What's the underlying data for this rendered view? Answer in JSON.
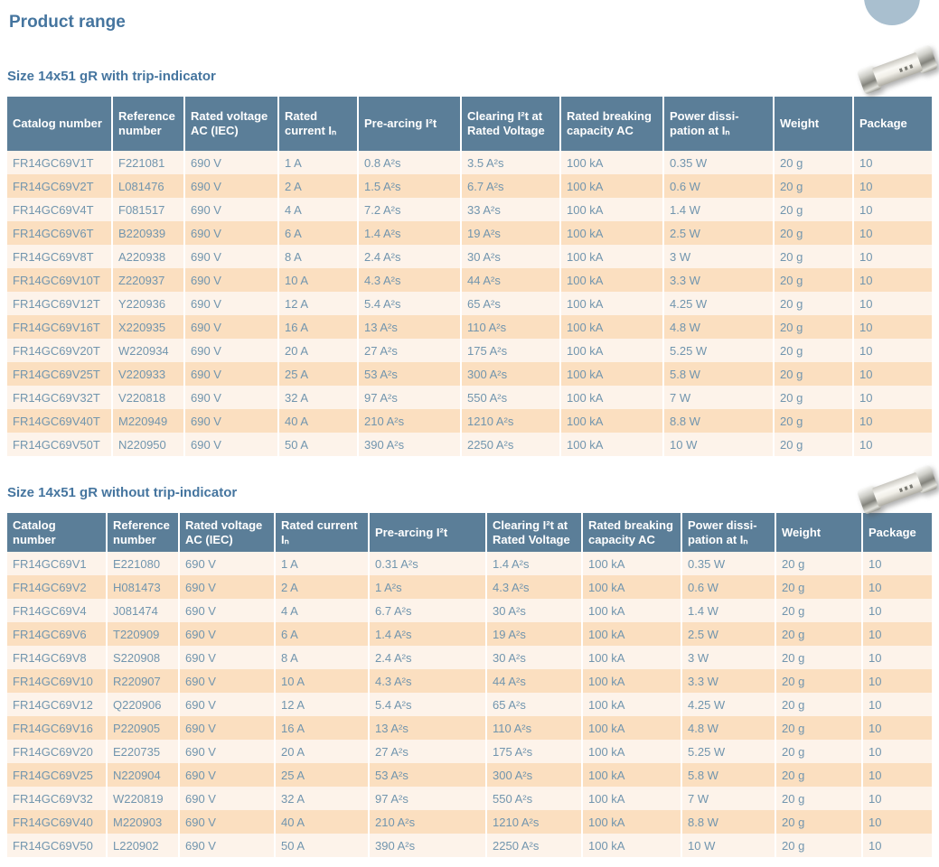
{
  "page": {
    "title": "Product range"
  },
  "decorations": {
    "circle_icon": "decorative-circle",
    "circle_color": "#a9bfcf",
    "fuse_icon": "cartridge-fuse-photo"
  },
  "colors": {
    "heading_text": "#45759f",
    "table_header_bg": "#5b7e98",
    "table_header_text": "#ffffff",
    "row_light_bg": "#fdf3ea",
    "row_peach_bg": "#fbdfc0",
    "cell_text": "#7195ae"
  },
  "sections": [
    {
      "heading": "Size 14x51 gR with trip-indicator",
      "columns": [
        "Catalog number",
        "Reference number",
        "Rated voltage AC (IEC)",
        "Rated current Iₙ",
        "Pre-arcing I²t",
        "Clearing I²t at Rated Voltage",
        "Rated breaking capacity AC",
        "Power dissi-pation at Iₙ",
        "Weight",
        "Package"
      ],
      "rows": [
        [
          "FR14GC69V1T",
          "F221081",
          "690 V",
          "1 A",
          "0.8 A²s",
          "3.5 A²s",
          "100 kA",
          "0.35 W",
          "20 g",
          "10"
        ],
        [
          "FR14GC69V2T",
          "L081476",
          "690 V",
          "2 A",
          "1.5 A²s",
          "6.7 A²s",
          "100 kA",
          "0.6 W",
          "20 g",
          "10"
        ],
        [
          "FR14GC69V4T",
          "F081517",
          "690 V",
          "4 A",
          "7.2 A²s",
          "33 A²s",
          "100 kA",
          "1.4 W",
          "20 g",
          "10"
        ],
        [
          "FR14GC69V6T",
          "B220939",
          "690 V",
          "6 A",
          "1.4 A²s",
          "19 A²s",
          "100 kA",
          "2.5 W",
          "20 g",
          "10"
        ],
        [
          "FR14GC69V8T",
          "A220938",
          "690 V",
          "8 A",
          "2.4 A²s",
          "30 A²s",
          "100 kA",
          "3 W",
          "20 g",
          "10"
        ],
        [
          "FR14GC69V10T",
          "Z220937",
          "690 V",
          "10 A",
          "4.3 A²s",
          "44 A²s",
          "100 kA",
          "3.3 W",
          "20 g",
          "10"
        ],
        [
          "FR14GC69V12T",
          "Y220936",
          "690 V",
          "12 A",
          "5.4 A²s",
          "65 A²s",
          "100 kA",
          "4.25 W",
          "20 g",
          "10"
        ],
        [
          "FR14GC69V16T",
          "X220935",
          "690 V",
          "16 A",
          "13 A²s",
          "110 A²s",
          "100 kA",
          "4.8 W",
          "20 g",
          "10"
        ],
        [
          "FR14GC69V20T",
          "W220934",
          "690 V",
          "20 A",
          "27 A²s",
          "175 A²s",
          "100 kA",
          "5.25 W",
          "20 g",
          "10"
        ],
        [
          "FR14GC69V25T",
          "V220933",
          "690 V",
          "25 A",
          "53 A²s",
          "300 A²s",
          "100 kA",
          "5.8 W",
          "20 g",
          "10"
        ],
        [
          "FR14GC69V32T",
          "V220818",
          "690 V",
          "32 A",
          "97 A²s",
          "550 A²s",
          "100 kA",
          "7 W",
          "20 g",
          "10"
        ],
        [
          "FR14GC69V40T",
          "M220949",
          "690 V",
          "40 A",
          "210 A²s",
          "1210 A²s",
          "100 kA",
          "8.8 W",
          "20 g",
          "10"
        ],
        [
          "FR14GC69V50T",
          "N220950",
          "690 V",
          "50 A",
          "390 A²s",
          "2250 A²s",
          "100 kA",
          "10 W",
          "20 g",
          "10"
        ]
      ]
    },
    {
      "heading": "Size 14x51 gR without trip-indicator",
      "columns": [
        "Catalog number",
        "Reference number",
        "Rated voltage AC (IEC)",
        "Rated current Iₙ",
        "Pre-arcing I²t",
        "Clearing I²t at Rated Voltage",
        "Rated breaking capacity AC",
        "Power dissi-pation at Iₙ",
        "Weight",
        "Package"
      ],
      "rows": [
        [
          "FR14GC69V1",
          "E221080",
          "690 V",
          "1 A",
          "0.31 A²s",
          "1.4 A²s",
          "100 kA",
          "0.35 W",
          "20 g",
          "10"
        ],
        [
          "FR14GC69V2",
          "H081473",
          "690 V",
          "2 A",
          "1 A²s",
          "4.3 A²s",
          "100 kA",
          "0.6 W",
          "20 g",
          "10"
        ],
        [
          "FR14GC69V4",
          "J081474",
          "690 V",
          "4 A",
          "6.7 A²s",
          "30 A²s",
          "100 kA",
          "1.4 W",
          "20 g",
          "10"
        ],
        [
          "FR14GC69V6",
          "T220909",
          "690 V",
          "6 A",
          "1.4 A²s",
          "19 A²s",
          "100 kA",
          "2.5 W",
          "20 g",
          "10"
        ],
        [
          "FR14GC69V8",
          "S220908",
          "690 V",
          "8 A",
          "2.4 A²s",
          "30 A²s",
          "100 kA",
          "3 W",
          "20 g",
          "10"
        ],
        [
          "FR14GC69V10",
          "R220907",
          "690 V",
          "10 A",
          "4.3 A²s",
          "44 A²s",
          "100 kA",
          "3.3 W",
          "20 g",
          "10"
        ],
        [
          "FR14GC69V12",
          "Q220906",
          "690 V",
          "12 A",
          "5.4 A²s",
          "65 A²s",
          "100 kA",
          "4.25 W",
          "20 g",
          "10"
        ],
        [
          "FR14GC69V16",
          "P220905",
          "690 V",
          "16 A",
          "13 A²s",
          "110 A²s",
          "100 kA",
          "4.8 W",
          "20 g",
          "10"
        ],
        [
          "FR14GC69V20",
          "E220735",
          "690 V",
          "20 A",
          "27 A²s",
          "175 A²s",
          "100 kA",
          "5.25 W",
          "20 g",
          "10"
        ],
        [
          "FR14GC69V25",
          "N220904",
          "690 V",
          "25 A",
          "53 A²s",
          "300 A²s",
          "100 kA",
          "5.8 W",
          "20 g",
          "10"
        ],
        [
          "FR14GC69V32",
          "W220819",
          "690 V",
          "32 A",
          "97 A²s",
          "550 A²s",
          "100 kA",
          "7 W",
          "20 g",
          "10"
        ],
        [
          "FR14GC69V40",
          "M220903",
          "690 V",
          "40 A",
          "210 A²s",
          "1210 A²s",
          "100 kA",
          "8.8 W",
          "20 g",
          "10"
        ],
        [
          "FR14GC69V50",
          "L220902",
          "690 V",
          "50 A",
          "390 A²s",
          "2250 A²s",
          "100 kA",
          "10 W",
          "20 g",
          "10"
        ]
      ]
    }
  ]
}
